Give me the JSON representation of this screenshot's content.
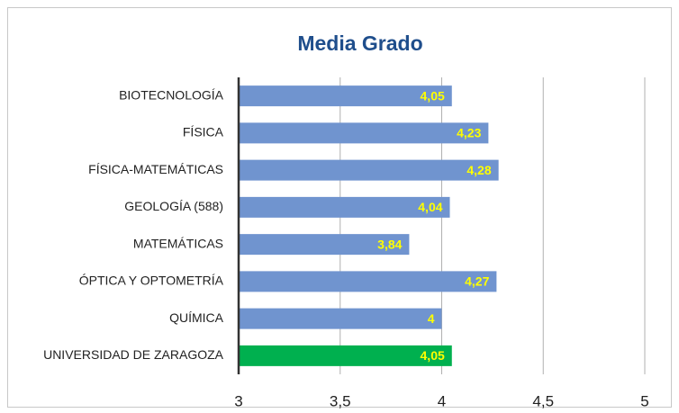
{
  "chart_data": {
    "type": "barh",
    "title": "Media Grado",
    "categories": [
      "BIOTECNOLOGÍA",
      "FÍSICA",
      "FÍSICA-MATEMÁTICAS",
      "GEOLOGÍA (588)",
      "MATEMÁTICAS",
      "ÓPTICA Y OPTOMETRÍA",
      "QUÍMICA",
      "UNIVERSIDAD DE ZARAGOZA"
    ],
    "values": [
      4.05,
      4.23,
      4.28,
      4.04,
      3.84,
      4.27,
      4,
      4.05
    ],
    "value_labels": [
      "4,05",
      "4,23",
      "4,28",
      "4,04",
      "3,84",
      "4,27",
      "4",
      "4,05"
    ],
    "colors": [
      "#7094cf",
      "#7094cf",
      "#7094cf",
      "#7094cf",
      "#7094cf",
      "#7094cf",
      "#7094cf",
      "#00b04f"
    ],
    "xlim": [
      3,
      5
    ],
    "xticks": [
      3,
      {
        "value": 3.5,
        "label": "3,5"
      },
      4,
      {
        "value": 4.5,
        "label": "4,5"
      },
      5
    ],
    "grid": true
  }
}
